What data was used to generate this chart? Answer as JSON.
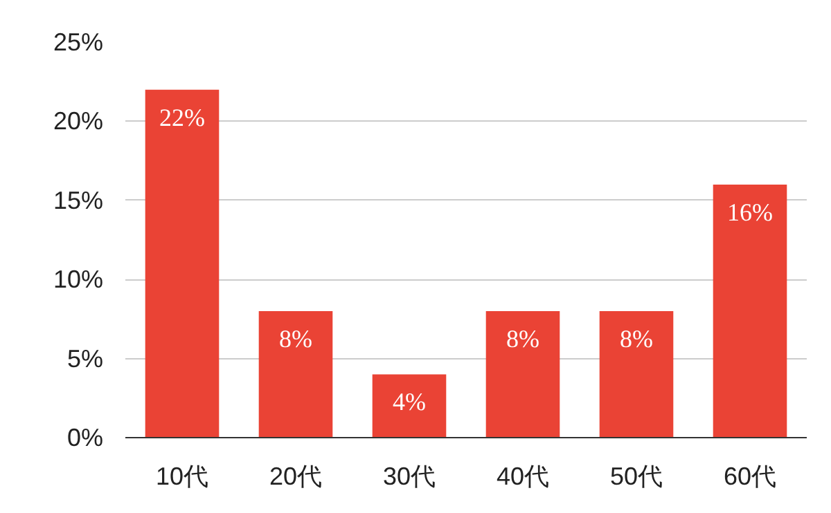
{
  "chart_data": {
    "type": "bar",
    "categories": [
      "10代",
      "20代",
      "30代",
      "40代",
      "50代",
      "60代"
    ],
    "values": [
      22,
      8,
      4,
      8,
      8,
      16
    ],
    "value_labels": [
      "22%",
      "8%",
      "4%",
      "8%",
      "8%",
      "16%"
    ],
    "color": "#ea4335",
    "ylim": [
      0,
      25
    ],
    "yticks": [
      {
        "value": 0,
        "label": "0%"
      },
      {
        "value": 5,
        "label": "5%"
      },
      {
        "value": 10,
        "label": "10%"
      },
      {
        "value": 15,
        "label": "15%"
      },
      {
        "value": 20,
        "label": "20%"
      },
      {
        "value": 25,
        "label": "25%"
      }
    ],
    "grid": "y"
  }
}
